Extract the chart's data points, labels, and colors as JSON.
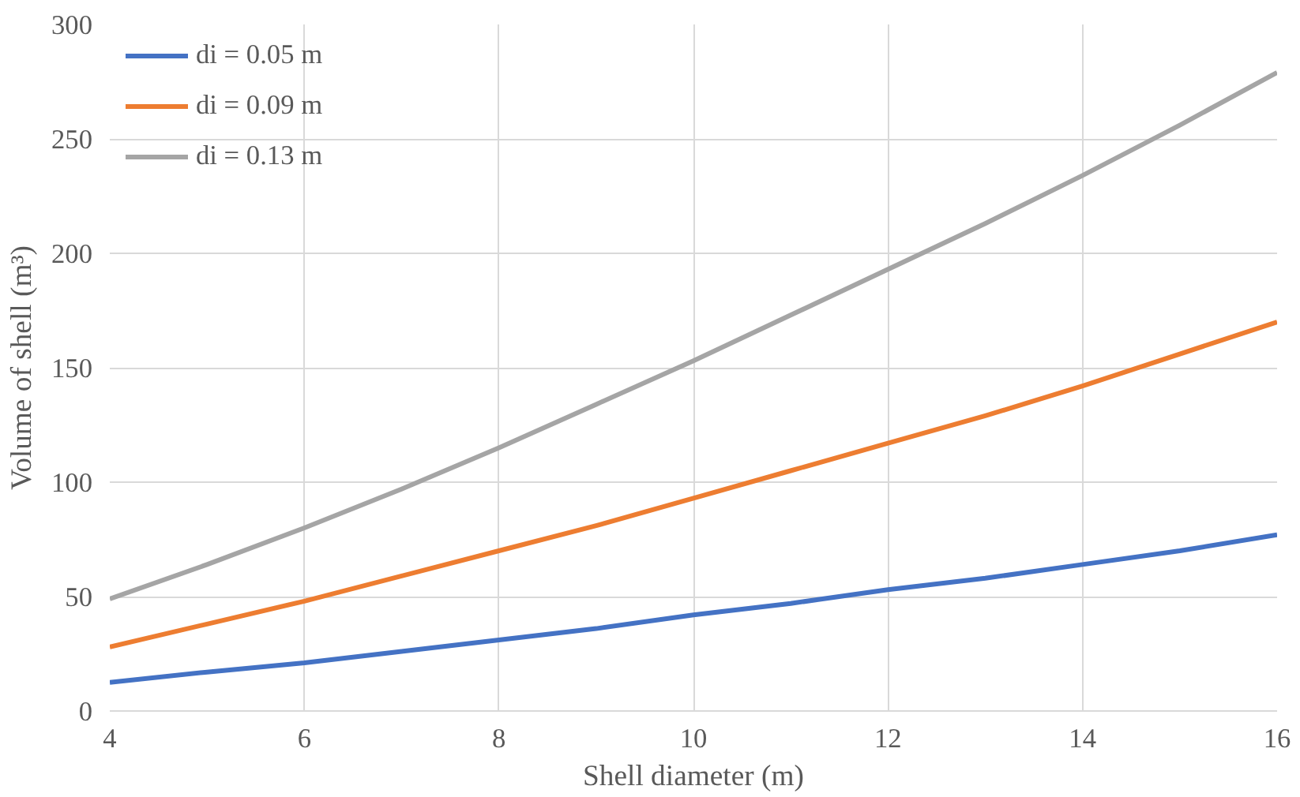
{
  "chart_data": {
    "type": "line",
    "xlabel": "Shell diameter (m)",
    "ylabel": "Volume of shell (m³)",
    "x": [
      4,
      5,
      6,
      7,
      8,
      9,
      10,
      11,
      12,
      13,
      14,
      15,
      16
    ],
    "series": [
      {
        "name": "di = 0.05 m",
        "color": "#4472c4",
        "values": [
          12.5,
          17,
          21,
          26,
          31,
          36,
          42,
          47,
          53,
          58,
          64,
          70,
          77
        ]
      },
      {
        "name": "di = 0.09 m",
        "color": "#ed7d31",
        "values": [
          28,
          38,
          48,
          59,
          70,
          81,
          93,
          105,
          117,
          129,
          142,
          156,
          170
        ]
      },
      {
        "name": "di = 0.13 m",
        "color": "#a5a5a5",
        "values": [
          49,
          64,
          80,
          97,
          115,
          134,
          153,
          173,
          193,
          213,
          234,
          256,
          279
        ]
      }
    ],
    "xlim": [
      4,
      16
    ],
    "xticks": [
      4,
      6,
      8,
      10,
      12,
      14,
      16
    ],
    "ylim": [
      0,
      300
    ],
    "yticks": [
      0,
      50,
      100,
      150,
      200,
      250,
      300
    ],
    "grid": true,
    "legend": "top left",
    "marker": "none",
    "line_style": "solid"
  }
}
